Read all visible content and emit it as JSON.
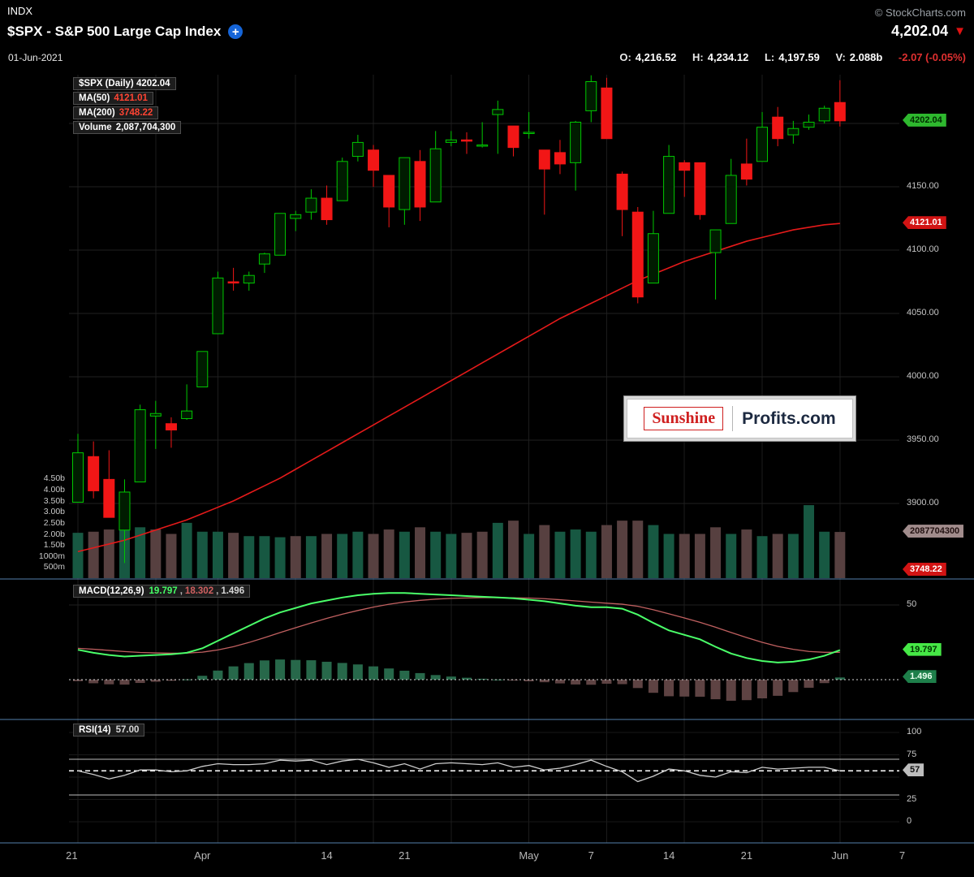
{
  "header": {
    "exchange": "INDX",
    "copyright": "© StockCharts.com",
    "title": "$SPX - S&P 500 Large Cap Index",
    "add_icon_glyph": "+",
    "last_price": "4,202.04",
    "direction_glyph": "▼",
    "date": "01-Jun-2021",
    "quote": {
      "o_label": "O:",
      "o": "4,216.52",
      "h_label": "H:",
      "h": "4,234.12",
      "l_label": "L:",
      "l": "4,197.59",
      "v_label": "V:",
      "v": "2.088b",
      "change": "-2.07 (-0.05%)"
    }
  },
  "legend_main": {
    "symbol_line": "$SPX (Daily) 4202.04",
    "ma50_label": "MA(50)",
    "ma50_value": "4121.01",
    "ma200_label": "MA(200)",
    "ma200_value": "3748.22",
    "volume_label": "Volume",
    "volume_value": "2,087,704,300"
  },
  "legend_macd": {
    "label": "MACD(12,26,9)",
    "macd_value": "19.797",
    "signal_value": "18.302",
    "hist_value": "1.496",
    "comma": ","
  },
  "legend_rsi": {
    "label": "RSI(14)",
    "value": "57.00"
  },
  "watermark": {
    "left": "Sunshine",
    "right": "Profits.com"
  },
  "axes": {
    "price_ticks": [
      {
        "text": "4150.00",
        "value": 4150
      },
      {
        "text": "4100.00",
        "value": 4100
      },
      {
        "text": "4050.00",
        "value": 4050
      },
      {
        "text": "4000.00",
        "value": 4000
      },
      {
        "text": "3950.00",
        "value": 3950
      },
      {
        "text": "3900.00",
        "value": 3900
      }
    ],
    "volume_ticks": [
      {
        "text": "4.50b",
        "value": 4.5
      },
      {
        "text": "4.00b",
        "value": 4.0
      },
      {
        "text": "3.50b",
        "value": 3.5
      },
      {
        "text": "3.00b",
        "value": 3.0
      },
      {
        "text": "2.50b",
        "value": 2.5
      },
      {
        "text": "2.00b",
        "value": 2.0
      },
      {
        "text": "1.50b",
        "value": 1.5
      },
      {
        "text": "1000m",
        "value": 1.0
      },
      {
        "text": "500m",
        "value": 0.5
      }
    ],
    "macd_ticks": [
      {
        "text": "50",
        "value": 50
      }
    ],
    "rsi_ticks": [
      {
        "text": "100",
        "value": 100
      },
      {
        "text": "75",
        "value": 75
      },
      {
        "text": "25",
        "value": 25
      },
      {
        "text": "0",
        "value": 0
      }
    ],
    "badges": [
      {
        "id": "price-last",
        "text": "4202.04",
        "panel": "price",
        "value": 4202.04,
        "bg": "#2eb82e",
        "fg": "#002b00"
      },
      {
        "id": "ma50",
        "text": "4121.01",
        "panel": "price",
        "value": 4121.01,
        "bg": "#d21414",
        "fg": "#ffffff"
      },
      {
        "id": "volume",
        "text": "2087704300",
        "panel": "volume",
        "value": 2.0877,
        "bg": "#a18c8c",
        "fg": "#221111"
      },
      {
        "id": "ma200",
        "text": "3748.22",
        "panel": "price",
        "value": 3748.22,
        "bg": "#d21414",
        "fg": "#ffffff"
      },
      {
        "id": "macd-line",
        "text": "19.797",
        "panel": "macd",
        "value": 19.797,
        "bg": "#46e846",
        "fg": "#003300"
      },
      {
        "id": "macd-hist",
        "text": "1.496",
        "panel": "macd",
        "value": 1.496,
        "bg": "#1e7f4a",
        "fg": "#eaffef"
      },
      {
        "id": "rsi",
        "text": "57",
        "panel": "rsi",
        "value": 57,
        "bg": "#bdbdbd",
        "fg": "#111111"
      }
    ]
  },
  "colors": {
    "candle_up": "#00c800",
    "candle_down": "#f21616",
    "candle_up_fill": "#001c00",
    "volume_up": "#175842",
    "volume_down": "#574040",
    "ma_line": "#e51a1a",
    "macd_line": "#4aff69",
    "macd_signal": "#c06060",
    "hist_up": "#27684a",
    "hist_down": "#5e4343",
    "rsi_line": "#cccccc",
    "separator": "#5580ad",
    "grid": "#202020",
    "grid_vert": "#1c1c1c",
    "x_label": "#b8b8b8"
  },
  "chart_data": [
    {
      "type": "candlestick",
      "name": "$SPX (Daily)",
      "ylim": [
        3850,
        4245
      ],
      "dates": [
        "Mar 22",
        "Mar 23",
        "Mar 24",
        "Mar 25",
        "Mar 26",
        "Mar 29",
        "Mar 30",
        "Mar 31",
        "Apr 1",
        "Apr 5",
        "Apr 6",
        "Apr 7",
        "Apr 8",
        "Apr 9",
        "Apr 12",
        "Apr 13",
        "Apr 14",
        "Apr 15",
        "Apr 16",
        "Apr 19",
        "Apr 20",
        "Apr 21",
        "Apr 22",
        "Apr 23",
        "Apr 26",
        "Apr 27",
        "Apr 28",
        "Apr 29",
        "Apr 30",
        "May 3",
        "May 4",
        "May 5",
        "May 6",
        "May 7",
        "May 10",
        "May 11",
        "May 12",
        "May 13",
        "May 14",
        "May 17",
        "May 18",
        "May 19",
        "May 20",
        "May 21",
        "May 24",
        "May 25",
        "May 26",
        "May 27",
        "May 28",
        "Jun 1"
      ],
      "open": [
        3901,
        3937,
        3919,
        3879,
        3917,
        3969,
        3963,
        3967,
        3992,
        4034,
        4075,
        4074,
        4089,
        4096,
        4125,
        4130,
        4141,
        4139,
        4174,
        4179,
        4159,
        4132,
        4170,
        4138,
        4185,
        4187,
        4183,
        4207,
        4198,
        4192,
        4179,
        4177,
        4169,
        4210,
        4228,
        4160,
        4130,
        4074,
        4129,
        4169,
        4169,
        4098,
        4121,
        4168,
        4170,
        4205,
        4191,
        4197,
        4202,
        4216.52
      ],
      "high": [
        3955,
        3949,
        3942,
        3919,
        3978,
        3981,
        3968,
        3994,
        4020,
        4083,
        4086,
        4083,
        4098,
        4129,
        4131,
        4148,
        4151,
        4173,
        4191,
        4183,
        4159,
        4173,
        4179,
        4194,
        4194,
        4193,
        4201,
        4218,
        4198,
        4209,
        4179,
        4187,
        4202,
        4238,
        4236,
        4162,
        4134,
        4131,
        4183,
        4171,
        4169,
        4116,
        4172,
        4188,
        4209,
        4213,
        4202,
        4207,
        4214,
        4234.12
      ],
      "low": [
        3901,
        3904,
        3889,
        3853,
        3917,
        3943,
        3944,
        3966,
        3992,
        4034,
        4068,
        4068,
        4082,
        4096,
        4115,
        4124,
        4120,
        4139,
        4170,
        4150,
        4118,
        4120,
        4123,
        4138,
        4182,
        4176,
        4181,
        4176,
        4174,
        4188,
        4128,
        4160,
        4147,
        4201,
        4188,
        4111,
        4058,
        4074,
        4129,
        4142,
        4124,
        4061,
        4121,
        4151,
        4170,
        4182,
        4184,
        4195,
        4200,
        4197.59
      ],
      "close": [
        3940,
        3910,
        3889,
        3909,
        3974,
        3971,
        3958,
        3973,
        4020,
        4078,
        4074,
        4080,
        4097,
        4129,
        4128,
        4141,
        4124,
        4170,
        4185,
        4163,
        4134,
        4173,
        4134,
        4180,
        4187,
        4186,
        4183,
        4211,
        4181,
        4193,
        4164,
        4168,
        4201,
        4233,
        4188,
        4132,
        4063,
        4113,
        4174,
        4163,
        4128,
        4116,
        4159,
        4156,
        4197,
        4188,
        4196,
        4201,
        4212,
        4202.04
      ],
      "ma50": [
        3862,
        3865,
        3868,
        3871,
        3875,
        3879,
        3883,
        3887,
        3892,
        3897,
        3902,
        3908,
        3914,
        3920,
        3927,
        3934,
        3941,
        3948,
        3955,
        3962,
        3969,
        3976,
        3983,
        3990,
        3997,
        4004,
        4011,
        4018,
        4025,
        4032,
        4039,
        4046,
        4052,
        4058,
        4064,
        4070,
        4076,
        4081,
        4086,
        4091,
        4095,
        4099,
        4103,
        4107,
        4110,
        4113,
        4116,
        4118,
        4120,
        4121.01
      ],
      "volume_billions": [
        2.05,
        2.1,
        2.2,
        2.45,
        2.3,
        2.2,
        2.0,
        2.5,
        2.1,
        2.1,
        2.05,
        1.9,
        1.9,
        1.85,
        1.9,
        1.9,
        2.0,
        2.0,
        2.1,
        2.0,
        2.2,
        2.1,
        2.3,
        2.1,
        2.0,
        2.05,
        2.1,
        2.5,
        2.6,
        2.0,
        2.4,
        2.1,
        2.2,
        2.1,
        2.4,
        2.6,
        2.6,
        2.4,
        2.0,
        2.0,
        2.0,
        2.3,
        2.0,
        2.2,
        1.9,
        2.0,
        2.0,
        3.3,
        2.1,
        2.088
      ],
      "overlays": {
        "ma50_last": 4121.01,
        "ma200_last": 3748.22,
        "volume_last": 2087704300,
        "last_close": 4202.04
      },
      "x_labels": [
        {
          "i": -0.4,
          "t": "21"
        },
        {
          "i": 8,
          "t": "Apr"
        },
        {
          "i": 16,
          "t": "14"
        },
        {
          "i": 21,
          "t": "21"
        },
        {
          "i": 29,
          "t": "May"
        },
        {
          "i": 33,
          "t": "7"
        },
        {
          "i": 38,
          "t": "14"
        },
        {
          "i": 43,
          "t": "21"
        },
        {
          "i": 49,
          "t": "Jun"
        },
        {
          "i": 53,
          "t": "7"
        }
      ],
      "grid_weeks": [
        0,
        5,
        9,
        14,
        19,
        24,
        29,
        34,
        39,
        44,
        49,
        53
      ]
    },
    {
      "type": "line",
      "name": "MACD(12,26,9)",
      "ylim": [
        -20,
        65
      ],
      "macd": [
        20.0,
        18.0,
        16.5,
        15.5,
        16.0,
        16.5,
        17.0,
        18.0,
        21.0,
        26.0,
        31.0,
        36.0,
        41.0,
        45.0,
        48.0,
        51.0,
        53.0,
        55.0,
        56.5,
        57.5,
        58.0,
        58.0,
        57.5,
        57.0,
        56.5,
        56.0,
        55.5,
        55.0,
        54.5,
        53.5,
        52.5,
        51.0,
        49.5,
        48.5,
        48.5,
        47.5,
        43.5,
        38.0,
        33.0,
        30.0,
        27.0,
        22.0,
        17.5,
        14.5,
        12.5,
        11.5,
        12.0,
        13.5,
        16.0,
        19.797
      ],
      "signal": [
        21.0,
        20.4,
        19.6,
        18.8,
        18.2,
        17.9,
        17.7,
        17.8,
        18.4,
        19.9,
        22.1,
        24.9,
        28.1,
        31.5,
        34.8,
        38.0,
        41.0,
        43.8,
        46.3,
        48.6,
        50.5,
        52.0,
        53.1,
        53.9,
        54.4,
        54.7,
        54.9,
        54.9,
        54.8,
        54.6,
        54.2,
        53.5,
        52.7,
        51.9,
        51.2,
        50.5,
        49.1,
        46.8,
        44.1,
        41.3,
        38.4,
        35.1,
        31.6,
        28.2,
        25.0,
        22.3,
        20.3,
        18.9,
        18.3,
        18.302
      ],
      "last": {
        "macd": 19.797,
        "signal": 18.302,
        "hist": 1.496
      }
    },
    {
      "type": "line",
      "name": "RSI(14)",
      "ylim": [
        0,
        100
      ],
      "values": [
        57,
        53,
        48,
        52,
        58,
        58,
        56,
        57,
        62,
        65,
        64,
        64,
        65,
        69,
        68,
        69,
        64,
        68,
        70,
        66,
        61,
        65,
        59,
        65,
        66,
        65,
        64,
        66,
        61,
        63,
        58,
        60,
        64,
        69,
        62,
        56,
        45,
        51,
        59,
        57,
        52,
        50,
        56,
        55,
        61,
        59,
        60,
        61,
        61,
        57
      ],
      "last": 57.0,
      "levels": {
        "overbought": 70,
        "oversold": 30
      }
    }
  ]
}
